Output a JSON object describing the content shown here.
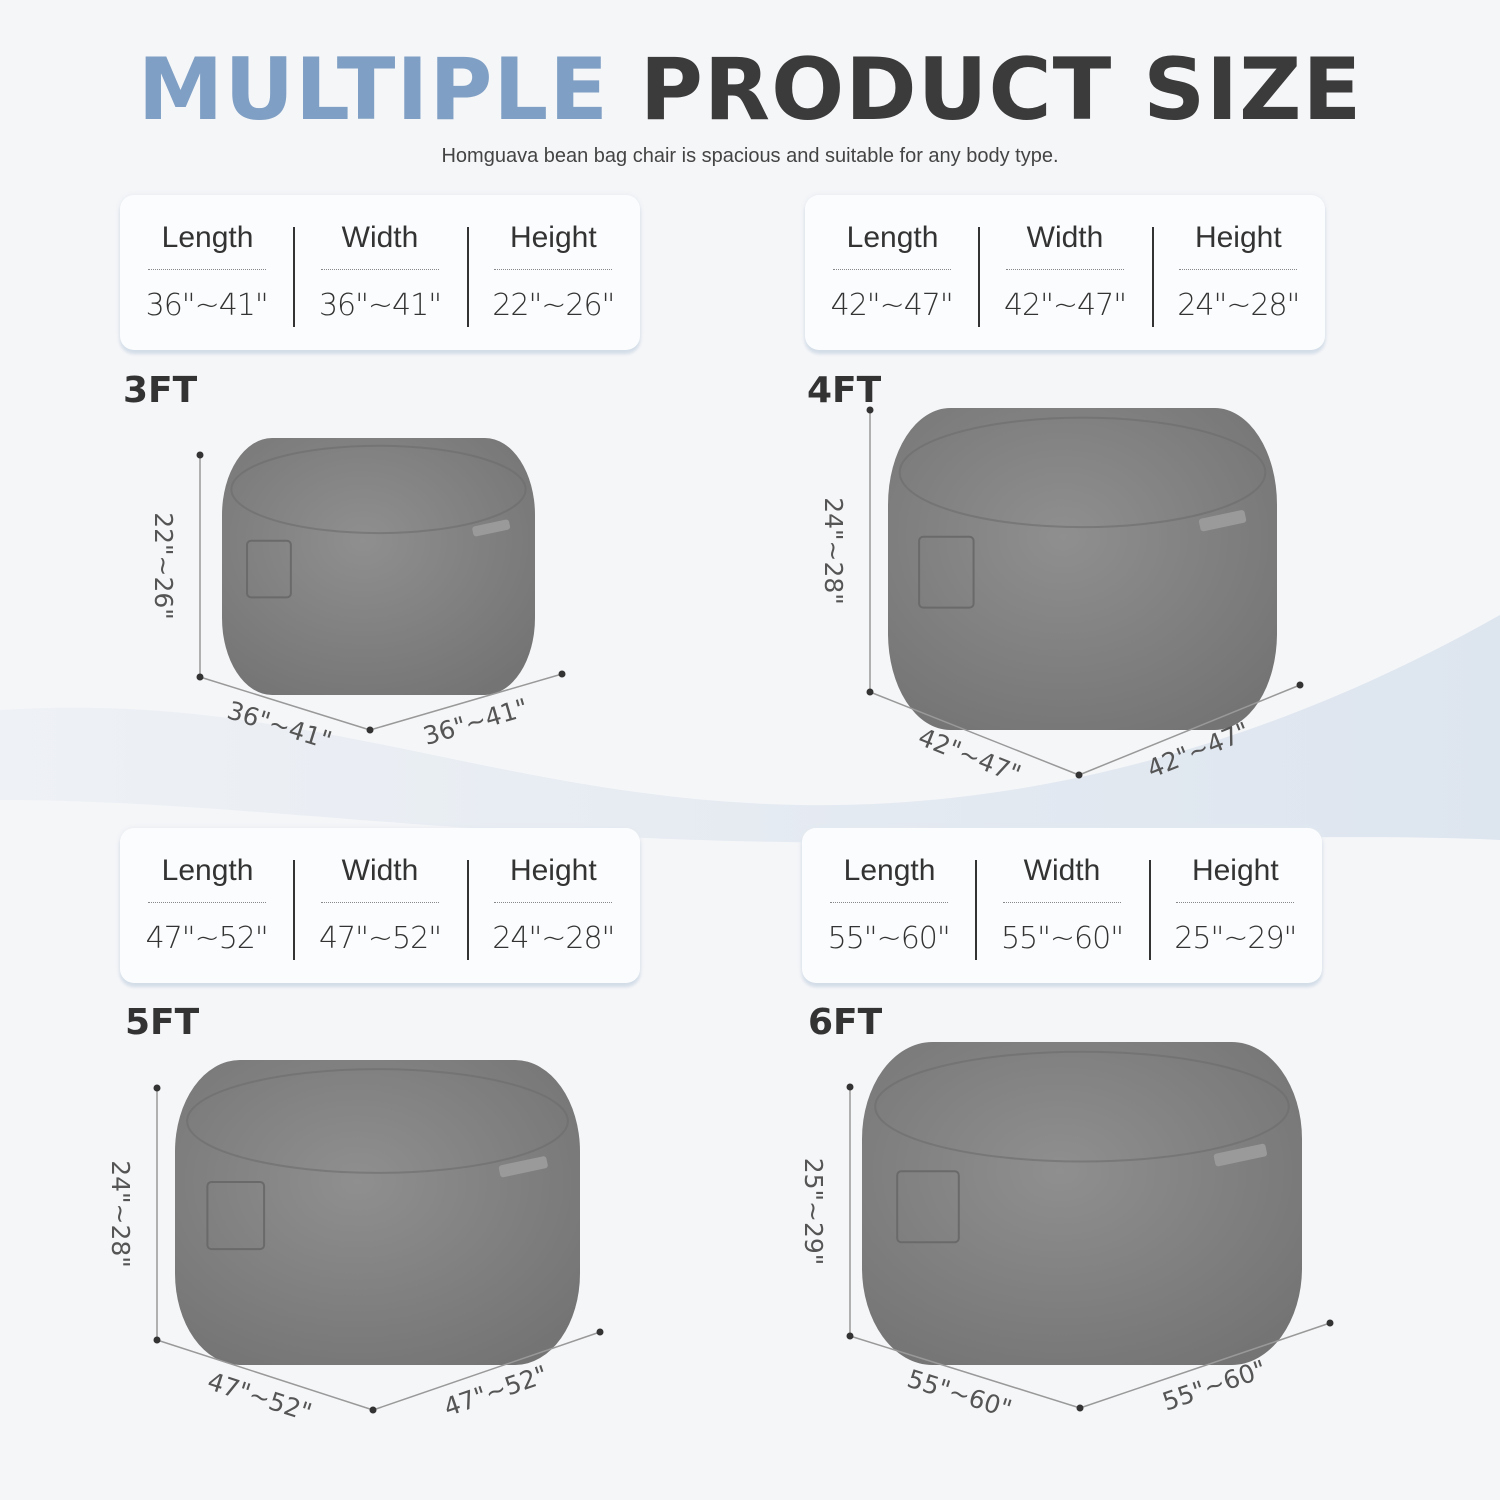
{
  "header": {
    "title_part1": "MULTIPLE",
    "title_part2": "PRODUCT SIZE",
    "subtitle": "Homguava bean bag chair is spacious and suitable for any body type."
  },
  "colors": {
    "title_accent": "#7f9fc4",
    "title_dark": "#3b3b3b",
    "product": "#8a8a8a"
  },
  "column_headers": [
    "Length",
    "Width",
    "Height"
  ],
  "sizes": [
    {
      "label": "3FT",
      "length": "36\"~41\"",
      "width": "36\"~41\"",
      "height": "22\"~26\""
    },
    {
      "label": "4FT",
      "length": "42\"~47\"",
      "width": "42\"~47\"",
      "height": "24\"~28\""
    },
    {
      "label": "5FT",
      "length": "47\"~52\"",
      "width": "47\"~52\"",
      "height": "24\"~28\""
    },
    {
      "label": "6FT",
      "length": "55\"~60\"",
      "width": "55\"~60\"",
      "height": "25\"~29\""
    }
  ]
}
